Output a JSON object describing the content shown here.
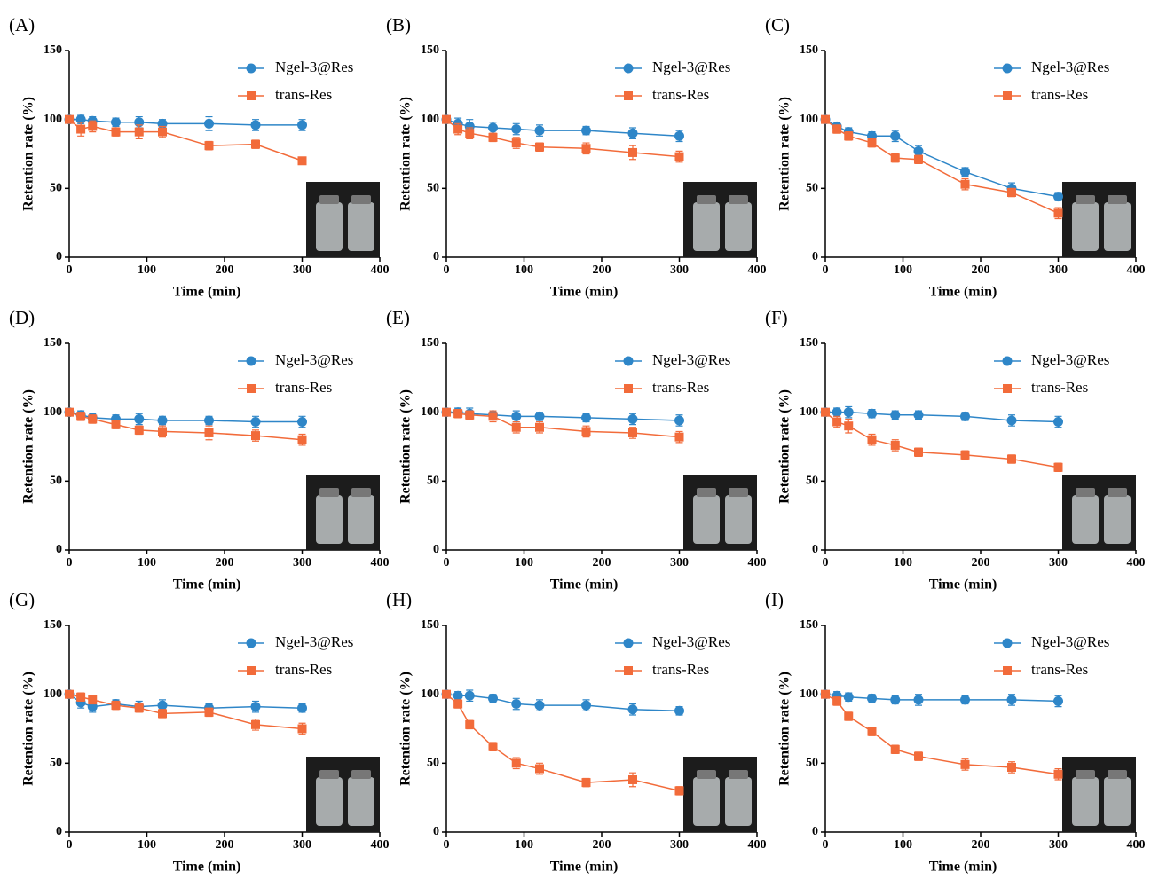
{
  "chart_data": [
    {
      "type": "line",
      "title": "(A)",
      "x_label": "Time (min)",
      "y_label": "Retention rate (%)",
      "x": [
        0,
        15,
        30,
        60,
        90,
        120,
        180,
        240,
        300
      ],
      "xlim": [
        0,
        400
      ],
      "xticks": [
        0,
        100,
        200,
        300,
        400
      ],
      "ylim": [
        0,
        150
      ],
      "yticks": [
        0,
        50,
        100,
        150
      ],
      "series": [
        {
          "name": "Ngel-3@Res",
          "color": "#2e86c8",
          "marker": "circle",
          "values": [
            100,
            100,
            99,
            98,
            98,
            97,
            97,
            96,
            96
          ],
          "errors": [
            2,
            3,
            3,
            3,
            4,
            3,
            5,
            4,
            4
          ]
        },
        {
          "name": "trans-Res",
          "color": "#f26b3a",
          "marker": "square",
          "values": [
            100,
            93,
            95,
            91,
            91,
            91,
            81,
            82,
            70
          ],
          "errors": [
            2,
            5,
            4,
            3,
            5,
            4,
            3,
            3,
            2
          ]
        }
      ]
    },
    {
      "type": "line",
      "title": "(B)",
      "x_label": "Time (min)",
      "y_label": "Retention rate (%)",
      "x": [
        0,
        15,
        30,
        60,
        90,
        120,
        180,
        240,
        300
      ],
      "xlim": [
        0,
        400
      ],
      "xticks": [
        0,
        100,
        200,
        300,
        400
      ],
      "ylim": [
        0,
        150
      ],
      "yticks": [
        0,
        50,
        100,
        150
      ],
      "series": [
        {
          "name": "Ngel-3@Res",
          "color": "#2e86c8",
          "marker": "circle",
          "values": [
            100,
            97,
            95,
            94,
            93,
            92,
            92,
            90,
            88
          ],
          "errors": [
            2,
            4,
            5,
            4,
            4,
            4,
            3,
            4,
            4
          ]
        },
        {
          "name": "trans-Res",
          "color": "#f26b3a",
          "marker": "square",
          "values": [
            100,
            93,
            90,
            87,
            83,
            80,
            79,
            76,
            73
          ],
          "errors": [
            2,
            4,
            4,
            3,
            4,
            3,
            4,
            5,
            4
          ]
        }
      ]
    },
    {
      "type": "line",
      "title": "(C)",
      "x_label": "Time (min)",
      "y_label": "Retention rate (%)",
      "x": [
        0,
        15,
        30,
        60,
        90,
        120,
        180,
        240,
        300
      ],
      "xlim": [
        0,
        400
      ],
      "xticks": [
        0,
        100,
        200,
        300,
        400
      ],
      "ylim": [
        0,
        150
      ],
      "yticks": [
        0,
        50,
        100,
        150
      ],
      "series": [
        {
          "name": "Ngel-3@Res",
          "color": "#2e86c8",
          "marker": "circle",
          "values": [
            100,
            95,
            91,
            88,
            88,
            77,
            62,
            50,
            44
          ],
          "errors": [
            2,
            3,
            3,
            3,
            4,
            4,
            3,
            4,
            3
          ]
        },
        {
          "name": "trans-Res",
          "color": "#f26b3a",
          "marker": "square",
          "values": [
            100,
            93,
            88,
            83,
            72,
            71,
            53,
            47,
            32
          ],
          "errors": [
            2,
            3,
            3,
            3,
            3,
            3,
            4,
            3,
            4
          ]
        }
      ]
    },
    {
      "type": "line",
      "title": "(D)",
      "x_label": "Time (min)",
      "y_label": "Retention rate (%)",
      "x": [
        0,
        15,
        30,
        60,
        90,
        120,
        180,
        240,
        300
      ],
      "xlim": [
        0,
        400
      ],
      "xticks": [
        0,
        100,
        200,
        300,
        400
      ],
      "ylim": [
        0,
        150
      ],
      "yticks": [
        0,
        50,
        100,
        150
      ],
      "series": [
        {
          "name": "Ngel-3@Res",
          "color": "#2e86c8",
          "marker": "circle",
          "values": [
            100,
            98,
            96,
            95,
            95,
            94,
            94,
            93,
            93
          ],
          "errors": [
            2,
            3,
            3,
            3,
            4,
            3,
            3,
            4,
            4
          ]
        },
        {
          "name": "trans-Res",
          "color": "#f26b3a",
          "marker": "square",
          "values": [
            100,
            97,
            95,
            91,
            87,
            86,
            85,
            83,
            80
          ],
          "errors": [
            2,
            3,
            3,
            3,
            3,
            4,
            5,
            4,
            4
          ]
        }
      ]
    },
    {
      "type": "line",
      "title": "(E)",
      "x_label": "Time (min)",
      "y_label": "Retention rate (%)",
      "x": [
        0,
        15,
        30,
        60,
        90,
        120,
        180,
        240,
        300
      ],
      "xlim": [
        0,
        400
      ],
      "xticks": [
        0,
        100,
        200,
        300,
        400
      ],
      "ylim": [
        0,
        150
      ],
      "yticks": [
        0,
        50,
        100,
        150
      ],
      "series": [
        {
          "name": "Ngel-3@Res",
          "color": "#2e86c8",
          "marker": "circle",
          "values": [
            100,
            100,
            99,
            98,
            97,
            97,
            96,
            95,
            94
          ],
          "errors": [
            2,
            3,
            4,
            3,
            4,
            3,
            3,
            4,
            4
          ]
        },
        {
          "name": "trans-Res",
          "color": "#f26b3a",
          "marker": "square",
          "values": [
            100,
            99,
            98,
            97,
            89,
            89,
            86,
            85,
            82
          ],
          "errors": [
            2,
            3,
            3,
            4,
            4,
            4,
            4,
            4,
            4
          ]
        }
      ]
    },
    {
      "type": "line",
      "title": "(F)",
      "x_label": "Time (min)",
      "y_label": "Retention rate (%)",
      "x": [
        0,
        15,
        30,
        60,
        90,
        120,
        180,
        240,
        300
      ],
      "xlim": [
        0,
        400
      ],
      "xticks": [
        0,
        100,
        200,
        300,
        400
      ],
      "ylim": [
        0,
        150
      ],
      "yticks": [
        0,
        50,
        100,
        150
      ],
      "series": [
        {
          "name": "Ngel-3@Res",
          "color": "#2e86c8",
          "marker": "circle",
          "values": [
            100,
            100,
            100,
            99,
            98,
            98,
            97,
            94,
            93
          ],
          "errors": [
            2,
            3,
            4,
            3,
            3,
            3,
            3,
            4,
            4
          ]
        },
        {
          "name": "trans-Res",
          "color": "#f26b3a",
          "marker": "square",
          "values": [
            100,
            93,
            90,
            80,
            76,
            71,
            69,
            66,
            60
          ],
          "errors": [
            2,
            4,
            5,
            4,
            4,
            3,
            3,
            3,
            3
          ]
        }
      ]
    },
    {
      "type": "line",
      "title": "(G)",
      "x_label": "Time (min)",
      "y_label": "Retention rate (%)",
      "x": [
        0,
        15,
        30,
        60,
        90,
        120,
        180,
        240,
        300
      ],
      "xlim": [
        0,
        400
      ],
      "xticks": [
        0,
        100,
        200,
        300,
        400
      ],
      "ylim": [
        0,
        150
      ],
      "yticks": [
        0,
        50,
        100,
        150
      ],
      "series": [
        {
          "name": "Ngel-3@Res",
          "color": "#2e86c8",
          "marker": "circle",
          "values": [
            100,
            94,
            91,
            93,
            91,
            92,
            90,
            91,
            90
          ],
          "errors": [
            2,
            4,
            4,
            3,
            4,
            4,
            3,
            4,
            3
          ]
        },
        {
          "name": "trans-Res",
          "color": "#f26b3a",
          "marker": "square",
          "values": [
            100,
            98,
            96,
            92,
            90,
            86,
            87,
            78,
            75
          ],
          "errors": [
            2,
            3,
            3,
            3,
            3,
            3,
            3,
            4,
            4
          ]
        }
      ]
    },
    {
      "type": "line",
      "title": "(H)",
      "x_label": "Time (min)",
      "y_label": "Retention rate (%)",
      "x": [
        0,
        15,
        30,
        60,
        90,
        120,
        180,
        240,
        300
      ],
      "xlim": [
        0,
        400
      ],
      "xticks": [
        0,
        100,
        200,
        300,
        400
      ],
      "ylim": [
        0,
        150
      ],
      "yticks": [
        0,
        50,
        100,
        150
      ],
      "series": [
        {
          "name": "Ngel-3@Res",
          "color": "#2e86c8",
          "marker": "circle",
          "values": [
            100,
            99,
            99,
            97,
            93,
            92,
            92,
            89,
            88
          ],
          "errors": [
            2,
            3,
            4,
            3,
            4,
            4,
            4,
            4,
            3
          ]
        },
        {
          "name": "trans-Res",
          "color": "#f26b3a",
          "marker": "square",
          "values": [
            100,
            93,
            78,
            62,
            50,
            46,
            36,
            38,
            30
          ],
          "errors": [
            2,
            3,
            3,
            3,
            4,
            4,
            3,
            5,
            3
          ]
        }
      ]
    },
    {
      "type": "line",
      "title": "(I)",
      "x_label": "Time (min)",
      "y_label": "Retention rate (%)",
      "x": [
        0,
        15,
        30,
        60,
        90,
        120,
        180,
        240,
        300
      ],
      "xlim": [
        0,
        400
      ],
      "xticks": [
        0,
        100,
        200,
        300,
        400
      ],
      "ylim": [
        0,
        150
      ],
      "yticks": [
        0,
        50,
        100,
        150
      ],
      "series": [
        {
          "name": "Ngel-3@Res",
          "color": "#2e86c8",
          "marker": "circle",
          "values": [
            100,
            99,
            98,
            97,
            96,
            96,
            96,
            96,
            95
          ],
          "errors": [
            2,
            3,
            3,
            3,
            3,
            4,
            3,
            4,
            4
          ]
        },
        {
          "name": "trans-Res",
          "color": "#f26b3a",
          "marker": "square",
          "values": [
            100,
            95,
            84,
            73,
            60,
            55,
            49,
            47,
            42
          ],
          "errors": [
            2,
            3,
            3,
            3,
            3,
            3,
            4,
            4,
            4
          ]
        }
      ]
    }
  ]
}
